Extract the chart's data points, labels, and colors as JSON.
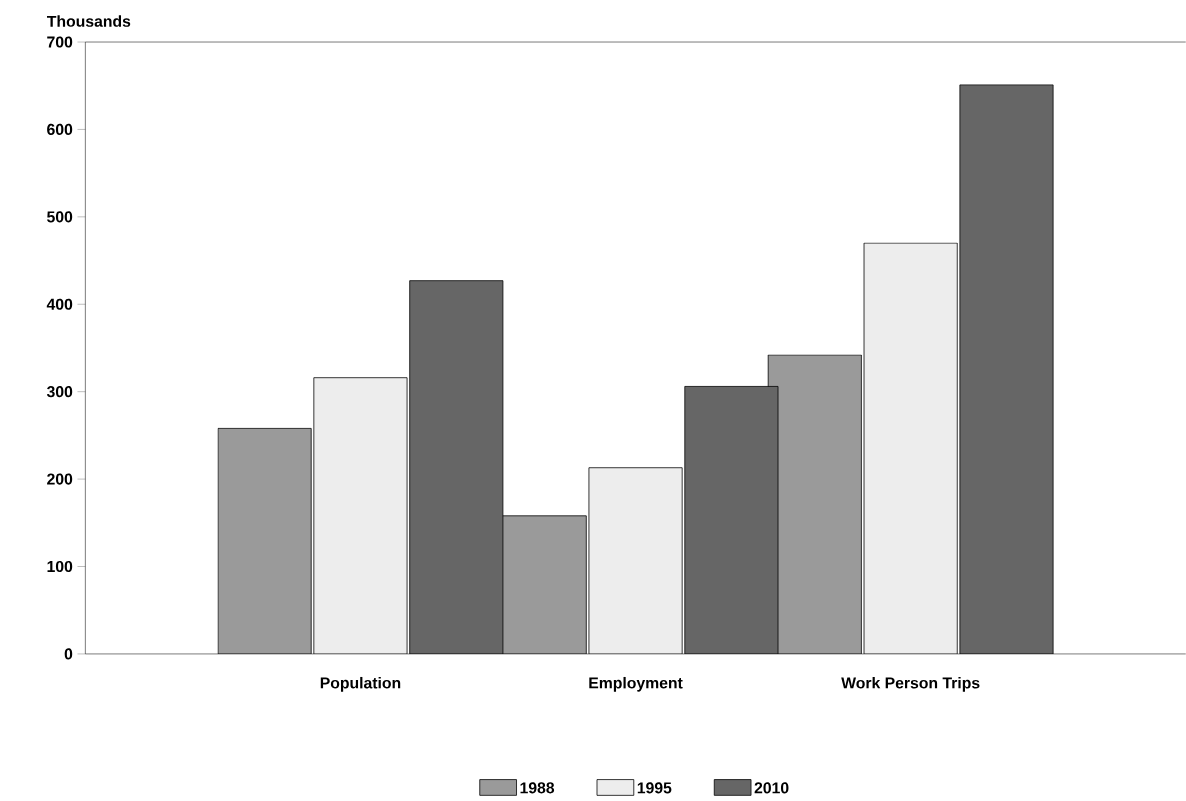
{
  "chart_data": {
    "type": "bar",
    "ylabel": "Thousands",
    "categories": [
      "Population",
      "Employment",
      "Work Person Trips"
    ],
    "series": [
      {
        "name": "1988",
        "color": "#9a9a9a",
        "values": [
          258,
          158,
          342
        ]
      },
      {
        "name": "1995",
        "color": "#ededed",
        "values": [
          316,
          213,
          470
        ]
      },
      {
        "name": "2010",
        "color": "#666666",
        "values": [
          427,
          306,
          651
        ]
      }
    ],
    "ylim": [
      0,
      700
    ],
    "yticks": [
      0,
      100,
      200,
      300,
      400,
      500,
      600,
      700
    ],
    "grid": false,
    "legend": "bottom"
  }
}
